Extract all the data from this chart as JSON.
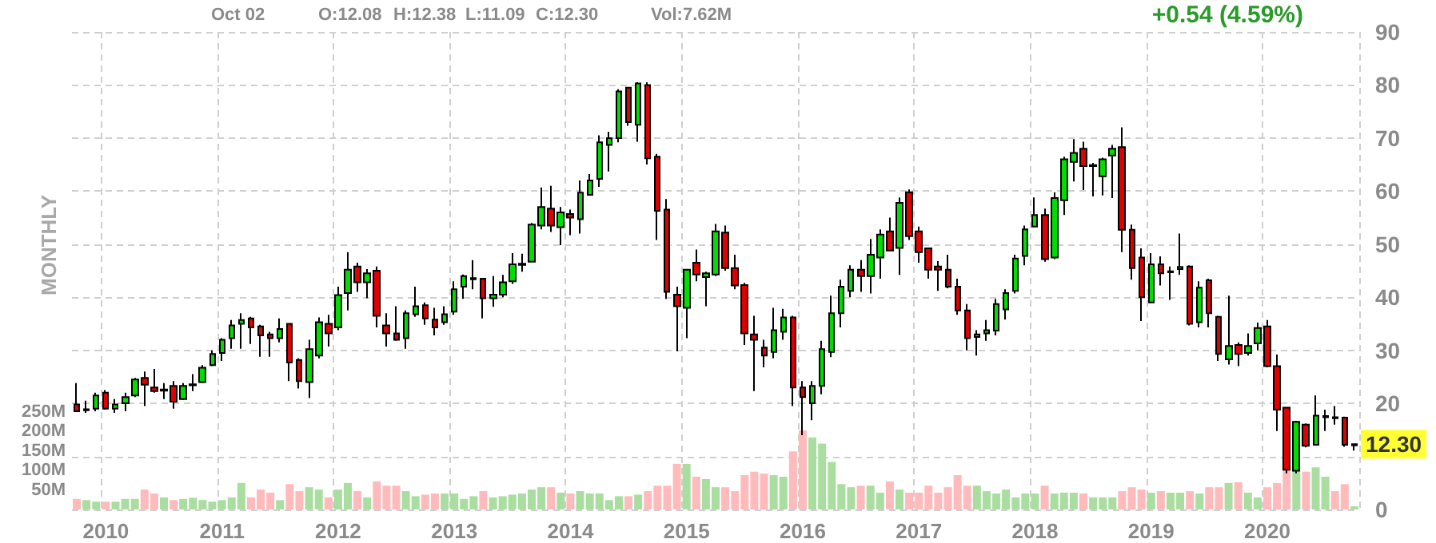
{
  "chart_data": {
    "type": "candlestick",
    "categories": [
      null,
      null,
      null,
      "2010",
      null,
      null,
      null,
      null,
      null,
      null,
      null,
      null,
      null,
      null,
      null,
      "2011",
      null,
      null,
      null,
      null,
      null,
      null,
      null,
      null,
      null,
      null,
      null,
      "2012",
      null,
      null,
      null,
      null,
      null,
      null,
      null,
      null,
      null,
      null,
      null,
      "2013",
      null,
      null,
      null,
      null,
      null,
      null,
      null,
      null,
      null,
      null,
      null,
      "2014",
      null,
      null,
      null,
      null,
      null,
      null,
      null,
      null,
      null,
      null,
      null,
      "2015",
      null,
      null,
      null,
      null,
      null,
      null,
      null,
      null,
      null,
      null,
      null,
      "2016",
      null,
      null,
      null,
      null,
      null,
      null,
      null,
      null,
      null,
      null,
      null,
      "2017",
      null,
      null,
      null,
      null,
      null,
      null,
      null,
      null,
      null,
      null,
      null,
      "2018",
      null,
      null,
      null,
      null,
      null,
      null,
      null,
      null,
      null,
      null,
      null,
      "2019",
      null,
      null,
      null,
      null,
      null,
      null,
      null,
      null,
      null,
      null,
      null,
      "2020",
      null,
      null,
      null,
      null,
      null,
      null,
      null,
      null,
      null
    ],
    "ohlc": [
      [
        19.8,
        23.8,
        18.4,
        18.5
      ],
      [
        18.7,
        20.5,
        18.2,
        18.9
      ],
      [
        19.0,
        22.0,
        18.5,
        21.5
      ],
      [
        22.0,
        22.5,
        18.8,
        19.0
      ],
      [
        19.0,
        20.8,
        18.2,
        19.8
      ],
      [
        20.0,
        22.0,
        18.5,
        21.2
      ],
      [
        21.5,
        24.8,
        21.2,
        24.5
      ],
      [
        24.8,
        26.0,
        19.5,
        23.5
      ],
      [
        23.0,
        26.5,
        22.0,
        22.3
      ],
      [
        22.4,
        23.8,
        20.8,
        22.6
      ],
      [
        23.3,
        24.2,
        19.0,
        20.3
      ],
      [
        20.8,
        23.8,
        20.6,
        23.3
      ],
      [
        23.4,
        25.5,
        22.3,
        23.6
      ],
      [
        24.0,
        27.2,
        23.8,
        26.7
      ],
      [
        27.2,
        30.0,
        27.0,
        29.3
      ],
      [
        29.5,
        32.3,
        28.0,
        32.0
      ],
      [
        32.3,
        35.7,
        30.3,
        34.7
      ],
      [
        35.0,
        37.0,
        30.3,
        35.7
      ],
      [
        36.0,
        36.3,
        31.2,
        34.3
      ],
      [
        34.5,
        34.8,
        28.8,
        32.8
      ],
      [
        33.0,
        33.5,
        28.8,
        32.3
      ],
      [
        32.3,
        36.0,
        31.5,
        34.0
      ],
      [
        35.0,
        35.0,
        24.2,
        27.7
      ],
      [
        28.2,
        28.5,
        22.8,
        24.2
      ],
      [
        24.0,
        32.0,
        21.0,
        30.2
      ],
      [
        29.0,
        36.2,
        28.5,
        35.3
      ],
      [
        35.0,
        36.7,
        30.7,
        33.2
      ],
      [
        34.3,
        42.0,
        33.8,
        40.4
      ],
      [
        40.8,
        48.5,
        37.5,
        45.2
      ],
      [
        45.8,
        46.5,
        41.0,
        42.8
      ],
      [
        42.8,
        45.3,
        39.8,
        44.5
      ],
      [
        45.0,
        45.8,
        34.3,
        36.5
      ],
      [
        34.7,
        37.0,
        30.7,
        33.2
      ],
      [
        33.2,
        38.3,
        31.8,
        32.0
      ],
      [
        32.3,
        37.5,
        30.3,
        37.0
      ],
      [
        36.8,
        42.0,
        36.3,
        38.3
      ],
      [
        38.5,
        39.0,
        34.8,
        36.0
      ],
      [
        35.8,
        38.0,
        32.8,
        34.3
      ],
      [
        35.3,
        38.3,
        34.8,
        36.8
      ],
      [
        37.3,
        43.0,
        36.7,
        41.5
      ],
      [
        42.0,
        44.3,
        39.7,
        44.0
      ],
      [
        43.4,
        47.0,
        41.5,
        43.6
      ],
      [
        43.5,
        43.5,
        36.0,
        39.8
      ],
      [
        39.8,
        44.0,
        38.2,
        40.5
      ],
      [
        40.5,
        44.2,
        40.0,
        42.8
      ],
      [
        43.0,
        48.3,
        42.5,
        46.2
      ],
      [
        46.1,
        48.2,
        44.8,
        46.3
      ],
      [
        46.7,
        54.0,
        46.7,
        53.7
      ],
      [
        53.5,
        60.7,
        52.8,
        57.0
      ],
      [
        56.7,
        61.0,
        52.3,
        53.5
      ],
      [
        53.2,
        57.0,
        49.8,
        56.0
      ],
      [
        55.7,
        56.5,
        51.7,
        55.0
      ],
      [
        54.7,
        62.0,
        52.0,
        59.7
      ],
      [
        59.3,
        63.2,
        59.2,
        62.0
      ],
      [
        62.3,
        70.5,
        60.8,
        69.2
      ],
      [
        68.7,
        71.2,
        63.7,
        70.0
      ],
      [
        70.0,
        79.2,
        69.2,
        78.8
      ],
      [
        79.5,
        79.5,
        72.3,
        73.0
      ],
      [
        72.5,
        80.5,
        69.3,
        80.3
      ],
      [
        80.0,
        80.5,
        65.0,
        66.2
      ],
      [
        66.5,
        67.0,
        50.8,
        56.3
      ],
      [
        56.5,
        58.5,
        39.7,
        41.0
      ],
      [
        40.5,
        42.0,
        29.8,
        38.3
      ],
      [
        38.0,
        45.2,
        32.3,
        45.2
      ],
      [
        46.5,
        49.0,
        43.0,
        44.3
      ],
      [
        43.8,
        44.8,
        38.3,
        44.5
      ],
      [
        44.3,
        53.8,
        44.0,
        52.4
      ],
      [
        52.2,
        53.5,
        45.0,
        45.5
      ],
      [
        45.5,
        48.0,
        41.5,
        42.2
      ],
      [
        42.3,
        42.7,
        31.0,
        33.2
      ],
      [
        33.0,
        36.5,
        22.3,
        32.0
      ],
      [
        30.5,
        32.0,
        26.8,
        29.0
      ],
      [
        29.7,
        38.0,
        28.5,
        33.8
      ],
      [
        33.5,
        37.8,
        32.0,
        36.2
      ],
      [
        36.2,
        36.5,
        19.5,
        23.0
      ],
      [
        23.0,
        24.2,
        14.0,
        21.2
      ],
      [
        20.0,
        24.2,
        16.8,
        23.3
      ],
      [
        23.3,
        31.8,
        21.7,
        30.2
      ],
      [
        29.7,
        40.3,
        28.7,
        37.0
      ],
      [
        37.0,
        43.3,
        34.3,
        42.0
      ],
      [
        41.2,
        46.0,
        40.0,
        45.2
      ],
      [
        45.2,
        47.0,
        41.0,
        44.0
      ],
      [
        44.0,
        51.0,
        40.7,
        48.0
      ],
      [
        47.5,
        52.8,
        43.5,
        51.8
      ],
      [
        52.4,
        55.0,
        48.8,
        48.8
      ],
      [
        49.3,
        58.8,
        44.2,
        57.8
      ],
      [
        59.8,
        60.3,
        50.8,
        51.5
      ],
      [
        52.4,
        53.3,
        46.5,
        48.5
      ],
      [
        49.2,
        49.2,
        43.5,
        45.2
      ],
      [
        45.8,
        46.8,
        41.2,
        45.2
      ],
      [
        45.2,
        48.0,
        41.7,
        42.0
      ],
      [
        42.0,
        43.5,
        36.7,
        37.5
      ],
      [
        37.5,
        38.7,
        30.0,
        32.3
      ],
      [
        32.5,
        33.8,
        29.0,
        33.0
      ],
      [
        33.2,
        35.7,
        31.8,
        33.8
      ],
      [
        33.7,
        39.7,
        32.8,
        38.7
      ],
      [
        37.7,
        41.5,
        35.8,
        40.8
      ],
      [
        41.2,
        48.0,
        40.7,
        47.3
      ],
      [
        47.8,
        53.5,
        46.0,
        52.8
      ],
      [
        53.3,
        58.8,
        53.3,
        55.5
      ],
      [
        55.5,
        56.7,
        46.7,
        47.2
      ],
      [
        47.5,
        59.8,
        47.2,
        58.7
      ],
      [
        58.3,
        66.5,
        55.5,
        66.0
      ],
      [
        65.5,
        69.8,
        61.8,
        67.2
      ],
      [
        68.0,
        69.3,
        60.2,
        64.7
      ],
      [
        64.7,
        65.3,
        59.0,
        64.9
      ],
      [
        62.8,
        66.3,
        59.2,
        66.0
      ],
      [
        66.7,
        68.7,
        58.7,
        68.0
      ],
      [
        68.3,
        72.0,
        48.5,
        52.7
      ],
      [
        52.7,
        53.7,
        43.3,
        45.5
      ],
      [
        47.5,
        49.2,
        35.5,
        40.0
      ],
      [
        39.0,
        48.3,
        39.0,
        46.2
      ],
      [
        46.2,
        47.7,
        42.2,
        44.5
      ],
      [
        44.7,
        45.8,
        39.5,
        44.9
      ],
      [
        45.3,
        52.0,
        44.2,
        45.7
      ],
      [
        45.8,
        46.0,
        34.7,
        35.0
      ],
      [
        35.3,
        43.0,
        34.3,
        41.8
      ],
      [
        43.2,
        43.5,
        34.3,
        37.0
      ],
      [
        36.3,
        36.5,
        28.0,
        29.3
      ],
      [
        28.3,
        40.3,
        27.3,
        30.8
      ],
      [
        31.0,
        31.5,
        27.0,
        29.3
      ],
      [
        29.5,
        33.2,
        29.0,
        30.8
      ],
      [
        31.3,
        35.2,
        30.0,
        34.2
      ],
      [
        34.5,
        35.7,
        26.8,
        27.0
      ],
      [
        27.0,
        29.2,
        14.8,
        18.8
      ],
      [
        19.2,
        19.2,
        6.8,
        7.5
      ],
      [
        7.3,
        16.7,
        6.8,
        16.5
      ],
      [
        16.0,
        16.2,
        11.7,
        12.0
      ],
      [
        12.2,
        21.5,
        12.2,
        17.7
      ],
      [
        17.4,
        18.8,
        14.8,
        17.6
      ],
      [
        17.4,
        19.5,
        16.0,
        17.2
      ],
      [
        17.3,
        17.5,
        11.8,
        12.2
      ],
      [
        12.08,
        12.38,
        11.09,
        12.3
      ]
    ],
    "colors": [
      "#e00000",
      "#00dd00",
      "#00dd00",
      "#e00000",
      "#00dd00",
      "#00dd00",
      "#00dd00",
      "#e00000",
      "#e00000",
      "#00dd00",
      "#e00000",
      "#00dd00",
      "#00dd00",
      "#00dd00",
      "#00dd00",
      "#00dd00",
      "#00dd00",
      "#00dd00",
      "#e00000",
      "#e00000",
      "#e00000",
      "#00dd00",
      "#e00000",
      "#e00000",
      "#00dd00",
      "#00dd00",
      "#e00000",
      "#00dd00",
      "#00dd00",
      "#e00000",
      "#00dd00",
      "#e00000",
      "#e00000",
      "#e00000",
      "#00dd00",
      "#00dd00",
      "#e00000",
      "#e00000",
      "#00dd00",
      "#00dd00",
      "#00dd00",
      "#00dd00",
      "#e00000",
      "#00dd00",
      "#00dd00",
      "#00dd00",
      "#00dd00",
      "#00dd00",
      "#00dd00",
      "#e00000",
      "#00dd00",
      "#e00000",
      "#00dd00",
      "#00dd00",
      "#00dd00",
      "#00dd00",
      "#00dd00",
      "#e00000",
      "#00dd00",
      "#e00000",
      "#e00000",
      "#e00000",
      "#e00000",
      "#00dd00",
      "#e00000",
      "#00dd00",
      "#00dd00",
      "#e00000",
      "#e00000",
      "#e00000",
      "#e00000",
      "#e00000",
      "#00dd00",
      "#00dd00",
      "#e00000",
      "#e00000",
      "#00dd00",
      "#00dd00",
      "#00dd00",
      "#00dd00",
      "#00dd00",
      "#e00000",
      "#00dd00",
      "#00dd00",
      "#e00000",
      "#00dd00",
      "#e00000",
      "#e00000",
      "#e00000",
      "#e00000",
      "#e00000",
      "#e00000",
      "#e00000",
      "#00dd00",
      "#00dd00",
      "#00dd00",
      "#00dd00",
      "#00dd00",
      "#00dd00",
      "#00dd00",
      "#e00000",
      "#00dd00",
      "#00dd00",
      "#00dd00",
      "#e00000",
      "#00dd00",
      "#00dd00",
      "#00dd00",
      "#e00000",
      "#e00000",
      "#e00000",
      "#00dd00",
      "#e00000",
      "#00dd00",
      "#00dd00",
      "#e00000",
      "#00dd00",
      "#e00000",
      "#e00000",
      "#00dd00",
      "#e00000",
      "#00dd00",
      "#00dd00",
      "#e00000",
      "#e00000",
      "#e00000",
      "#00dd00",
      "#e00000",
      "#00dd00",
      "#00dd00",
      "#e00000",
      "#e00000",
      "#00dd00"
    ],
    "series": [
      {
        "type": "bar",
        "axis": "y2",
        "values": [
          27,
          24,
          20,
          20,
          20,
          27,
          27,
          51,
          41,
          31,
          24,
          27,
          30,
          24,
          20,
          24,
          31,
          68,
          31,
          51,
          43,
          24,
          65,
          47,
          57,
          51,
          31,
          51,
          68,
          47,
          31,
          72,
          61,
          61,
          47,
          34,
          38,
          41,
          41,
          41,
          27,
          34,
          47,
          31,
          34,
          38,
          41,
          51,
          57,
          57,
          43,
          41,
          47,
          41,
          41,
          24,
          34,
          34,
          38,
          47,
          61,
          61,
          117,
          117,
          84,
          78,
          57,
          57,
          47,
          88,
          97,
          92,
          88,
          84,
          149,
          203,
          185,
          169,
          122,
          65,
          57,
          61,
          61,
          43,
          72,
          51,
          43,
          43,
          61,
          43,
          57,
          88,
          61,
          61,
          47,
          41,
          51,
          31,
          41,
          41,
          61,
          41,
          43,
          43,
          41,
          31,
          31,
          31,
          47,
          57,
          51,
          43,
          47,
          43,
          43,
          47,
          41,
          57,
          57,
          68,
          70,
          43,
          31,
          57,
          68,
          108,
          108,
          97,
          108,
          84,
          47,
          65,
          8
        ],
        "colors": [
          "#ffbbbb",
          "#a9dea0",
          "#a9dea0",
          "#ffbbbb",
          "#a9dea0",
          "#a9dea0",
          "#a9dea0",
          "#ffbbbb",
          "#ffbbbb",
          "#a9dea0",
          "#ffbbbb",
          "#a9dea0",
          "#a9dea0",
          "#a9dea0",
          "#a9dea0",
          "#a9dea0",
          "#a9dea0",
          "#a9dea0",
          "#ffbbbb",
          "#ffbbbb",
          "#ffbbbb",
          "#a9dea0",
          "#ffbbbb",
          "#ffbbbb",
          "#a9dea0",
          "#a9dea0",
          "#ffbbbb",
          "#a9dea0",
          "#a9dea0",
          "#ffbbbb",
          "#a9dea0",
          "#ffbbbb",
          "#ffbbbb",
          "#ffbbbb",
          "#a9dea0",
          "#a9dea0",
          "#ffbbbb",
          "#ffbbbb",
          "#a9dea0",
          "#a9dea0",
          "#a9dea0",
          "#a9dea0",
          "#ffbbbb",
          "#a9dea0",
          "#a9dea0",
          "#a9dea0",
          "#a9dea0",
          "#a9dea0",
          "#a9dea0",
          "#ffbbbb",
          "#a9dea0",
          "#ffbbbb",
          "#a9dea0",
          "#a9dea0",
          "#a9dea0",
          "#a9dea0",
          "#a9dea0",
          "#ffbbbb",
          "#a9dea0",
          "#ffbbbb",
          "#ffbbbb",
          "#ffbbbb",
          "#ffbbbb",
          "#a9dea0",
          "#ffbbbb",
          "#a9dea0",
          "#a9dea0",
          "#ffbbbb",
          "#ffbbbb",
          "#ffbbbb",
          "#ffbbbb",
          "#ffbbbb",
          "#a9dea0",
          "#a9dea0",
          "#ffbbbb",
          "#ffbbbb",
          "#a9dea0",
          "#a9dea0",
          "#a9dea0",
          "#a9dea0",
          "#a9dea0",
          "#ffbbbb",
          "#a9dea0",
          "#a9dea0",
          "#ffbbbb",
          "#a9dea0",
          "#ffbbbb",
          "#ffbbbb",
          "#ffbbbb",
          "#ffbbbb",
          "#ffbbbb",
          "#ffbbbb",
          "#ffbbbb",
          "#a9dea0",
          "#a9dea0",
          "#a9dea0",
          "#a9dea0",
          "#a9dea0",
          "#a9dea0",
          "#a9dea0",
          "#ffbbbb",
          "#a9dea0",
          "#a9dea0",
          "#a9dea0",
          "#ffbbbb",
          "#a9dea0",
          "#a9dea0",
          "#a9dea0",
          "#ffbbbb",
          "#ffbbbb",
          "#ffbbbb",
          "#a9dea0",
          "#ffbbbb",
          "#a9dea0",
          "#a9dea0",
          "#ffbbbb",
          "#a9dea0",
          "#ffbbbb",
          "#ffbbbb",
          "#a9dea0",
          "#ffbbbb",
          "#a9dea0",
          "#a9dea0",
          "#ffbbbb",
          "#ffbbbb",
          "#ffbbbb",
          "#a9dea0",
          "#ffbbbb",
          "#a9dea0",
          "#a9dea0",
          "#ffbbbb",
          "#ffbbbb",
          "#a9dea0"
        ]
      }
    ],
    "ylim": [
      0,
      90
    ],
    "yticks": [
      0,
      {
        "value": 10,
        "label": null
      },
      20,
      30,
      40,
      50,
      60,
      70,
      80,
      90
    ],
    "y2lim": [
      0,
      1225
    ],
    "y2ticks": [
      {
        "value": 50,
        "label": "50M"
      },
      {
        "value": 100,
        "label": "100M"
      },
      {
        "value": 150,
        "label": "150M"
      },
      {
        "value": 200,
        "label": "200M"
      },
      {
        "value": 250,
        "label": "250M"
      }
    ],
    "grid": true,
    "annotations": [
      "Oct 02",
      "O:12.08",
      "H:12.38",
      "L:11.09",
      "C:12.30",
      "Vol:7.62M",
      "+0.54 (4.59%)",
      "MONTHLY",
      {
        "text": "12.30",
        "y": 12.3
      }
    ]
  }
}
